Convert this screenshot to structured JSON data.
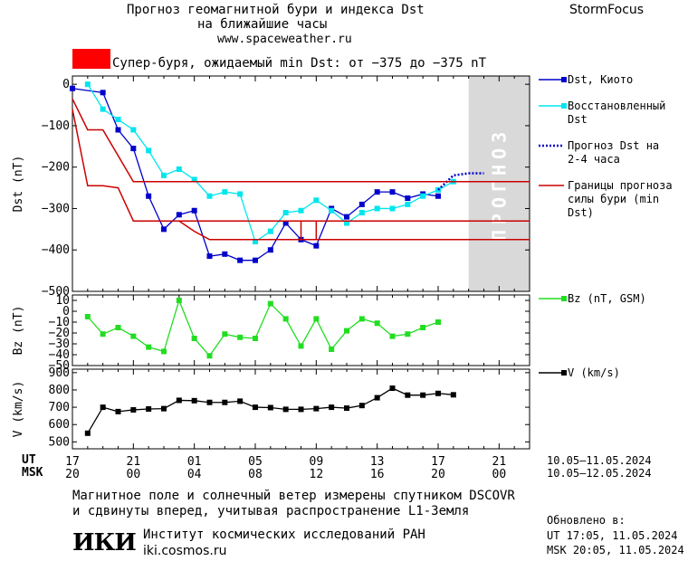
{
  "header": {
    "title_line1": "Прогноз геомагнитной бури и индекса Dst",
    "title_line2": "на ближайшие часы",
    "url": "www.spaceweather.ru",
    "brand": "StormFocus"
  },
  "storm_class": {
    "color": "#ff0000",
    "text": "Супер-буря, ожидаемый min Dst: от −375 до −375 nT"
  },
  "forecast_band_label": "ПРОГНОЗ",
  "colors": {
    "dst": "#0000cc",
    "dst_restored": "#00e5ee",
    "forecast": "#0000cc",
    "bounds": "#cc0000",
    "bz": "#22dd22",
    "v": "#000000",
    "forecast_band": "#d9d9d9"
  },
  "chart_data": [
    {
      "type": "line",
      "id": "dst",
      "ylabel": "Dst (nT)",
      "ylim": [
        -500,
        20
      ],
      "yticks": [
        0,
        -100,
        -200,
        -300,
        -400,
        -500
      ],
      "legend_placement": "right",
      "series": [
        {
          "name": "Dst, Киото",
          "style": "line-square-marker",
          "x": [
            17,
            19,
            20,
            21,
            22,
            23,
            24,
            25,
            26,
            27,
            28,
            29,
            30,
            31,
            32,
            33,
            34,
            35,
            36,
            37,
            38,
            39,
            40,
            41
          ],
          "values": [
            -10,
            -20,
            -110,
            -155,
            -270,
            -350,
            -315,
            -305,
            -415,
            -410,
            -425,
            -425,
            -400,
            -335,
            -375,
            -390,
            -300,
            -320,
            -290,
            -260,
            -260,
            -275,
            -265,
            -270
          ]
        },
        {
          "name": "Восстановленный Dst",
          "style": "line-square-marker",
          "x": [
            18,
            19,
            20,
            21,
            22,
            23,
            24,
            25,
            26,
            27,
            28,
            29,
            30,
            31,
            32,
            33,
            34,
            35,
            36,
            37,
            38,
            39,
            40,
            41,
            42
          ],
          "values": [
            0,
            -60,
            -85,
            -110,
            -160,
            -220,
            -205,
            -230,
            -270,
            -260,
            -265,
            -380,
            -355,
            -310,
            -305,
            -280,
            -305,
            -335,
            -310,
            -300,
            -300,
            -290,
            -270,
            -255,
            -235
          ]
        },
        {
          "name": "Прогноз Dst на 2-4 часа",
          "style": "dotted",
          "x": [
            41,
            42,
            43,
            44
          ],
          "values": [
            -255,
            -220,
            -215,
            -215
          ]
        },
        {
          "name": "Границы прогноза силы бури (min Dst)",
          "style": "step",
          "lines": [
            {
              "x": [
                17,
                18,
                19,
                21,
                47
              ],
              "values": [
                -35,
                -110,
                -110,
                -235,
                -235
              ]
            },
            {
              "x": [
                17,
                18,
                19,
                20,
                21,
                26,
                47
              ],
              "values": [
                -60,
                -245,
                -245,
                -250,
                -330,
                -330,
                -330
              ]
            },
            {
              "x": [
                21,
                31,
                32,
                32,
                47
              ],
              "values": [
                -330,
                -330,
                -330,
                -375,
                -375
              ]
            },
            {
              "x": [
                24,
                25,
                26,
                47
              ],
              "values": [
                -330,
                -355,
                -375,
                -375
              ]
            },
            {
              "x": [
                26,
                32,
                33,
                33
              ],
              "values": [
                -330,
                -330,
                -330,
                -375
              ]
            }
          ]
        }
      ]
    },
    {
      "type": "line",
      "id": "bz",
      "ylabel": "Bz (nT)",
      "ylim": [
        -50,
        15
      ],
      "yticks": [
        10,
        0,
        -10,
        -20,
        -30,
        -40,
        -50
      ],
      "series": [
        {
          "name": "Bz (nT, GSM)",
          "style": "line-square-marker",
          "x": [
            18,
            19,
            20,
            21,
            22,
            23,
            24,
            25,
            26,
            27,
            28,
            29,
            30,
            31,
            32,
            33,
            34,
            35,
            36,
            37,
            38,
            39,
            40,
            41
          ],
          "values": [
            -5,
            -21,
            -15,
            -23,
            -33,
            -37,
            10,
            -25,
            -41,
            -21,
            -24,
            -25,
            7,
            -7,
            -32,
            -7,
            -35,
            -18,
            -7,
            -11,
            -23,
            -21,
            -15,
            -10
          ]
        }
      ]
    },
    {
      "type": "line",
      "id": "v",
      "ylabel": "V (km/s)",
      "ylim": [
        460,
        920
      ],
      "yticks": [
        900,
        800,
        700,
        600,
        500
      ],
      "series": [
        {
          "name": "V (km/s)",
          "style": "line-square-marker",
          "x": [
            18,
            19,
            20,
            21,
            22,
            23,
            24,
            25,
            26,
            27,
            28,
            29,
            30,
            31,
            32,
            33,
            34,
            35,
            36,
            37,
            38,
            39,
            40,
            41,
            42
          ],
          "values": [
            550,
            700,
            675,
            685,
            690,
            692,
            740,
            738,
            728,
            728,
            735,
            700,
            698,
            688,
            688,
            692,
            700,
            695,
            710,
            755,
            810,
            770,
            770,
            780,
            772
          ]
        }
      ]
    }
  ],
  "time_axis": {
    "row1_label": "UT",
    "row2_label": "MSK",
    "ticks": [
      {
        "x": 17,
        "ut": "17",
        "msk": "20"
      },
      {
        "x": 21,
        "ut": "21",
        "msk": "00"
      },
      {
        "x": 25,
        "ut": "01",
        "msk": "04"
      },
      {
        "x": 29,
        "ut": "05",
        "msk": "08"
      },
      {
        "x": 33,
        "ut": "09",
        "msk": "12"
      },
      {
        "x": 37,
        "ut": "13",
        "msk": "16"
      },
      {
        "x": 41,
        "ut": "17",
        "msk": "20"
      },
      {
        "x": 45,
        "ut": "21",
        "msk": "00"
      }
    ],
    "ut_dates": "10.05–11.05.2024",
    "msk_dates": "10.05–12.05.2024"
  },
  "footer": {
    "note_line1": "Магнитное поле и солнечный ветер измерены спутником DSCOVR",
    "note_line2": "и сдвинуты вперед, учитывая распространение L1-Земля",
    "logo_text": "ИКИ",
    "institute": "Институт космических исследований РАН",
    "institute_url": "iki.cosmos.ru",
    "updated_label": "Обновлено в:",
    "updated_ut": "UT  17:05, 11.05.2024",
    "updated_msk": "MSK 20:05, 11.05.2024"
  }
}
